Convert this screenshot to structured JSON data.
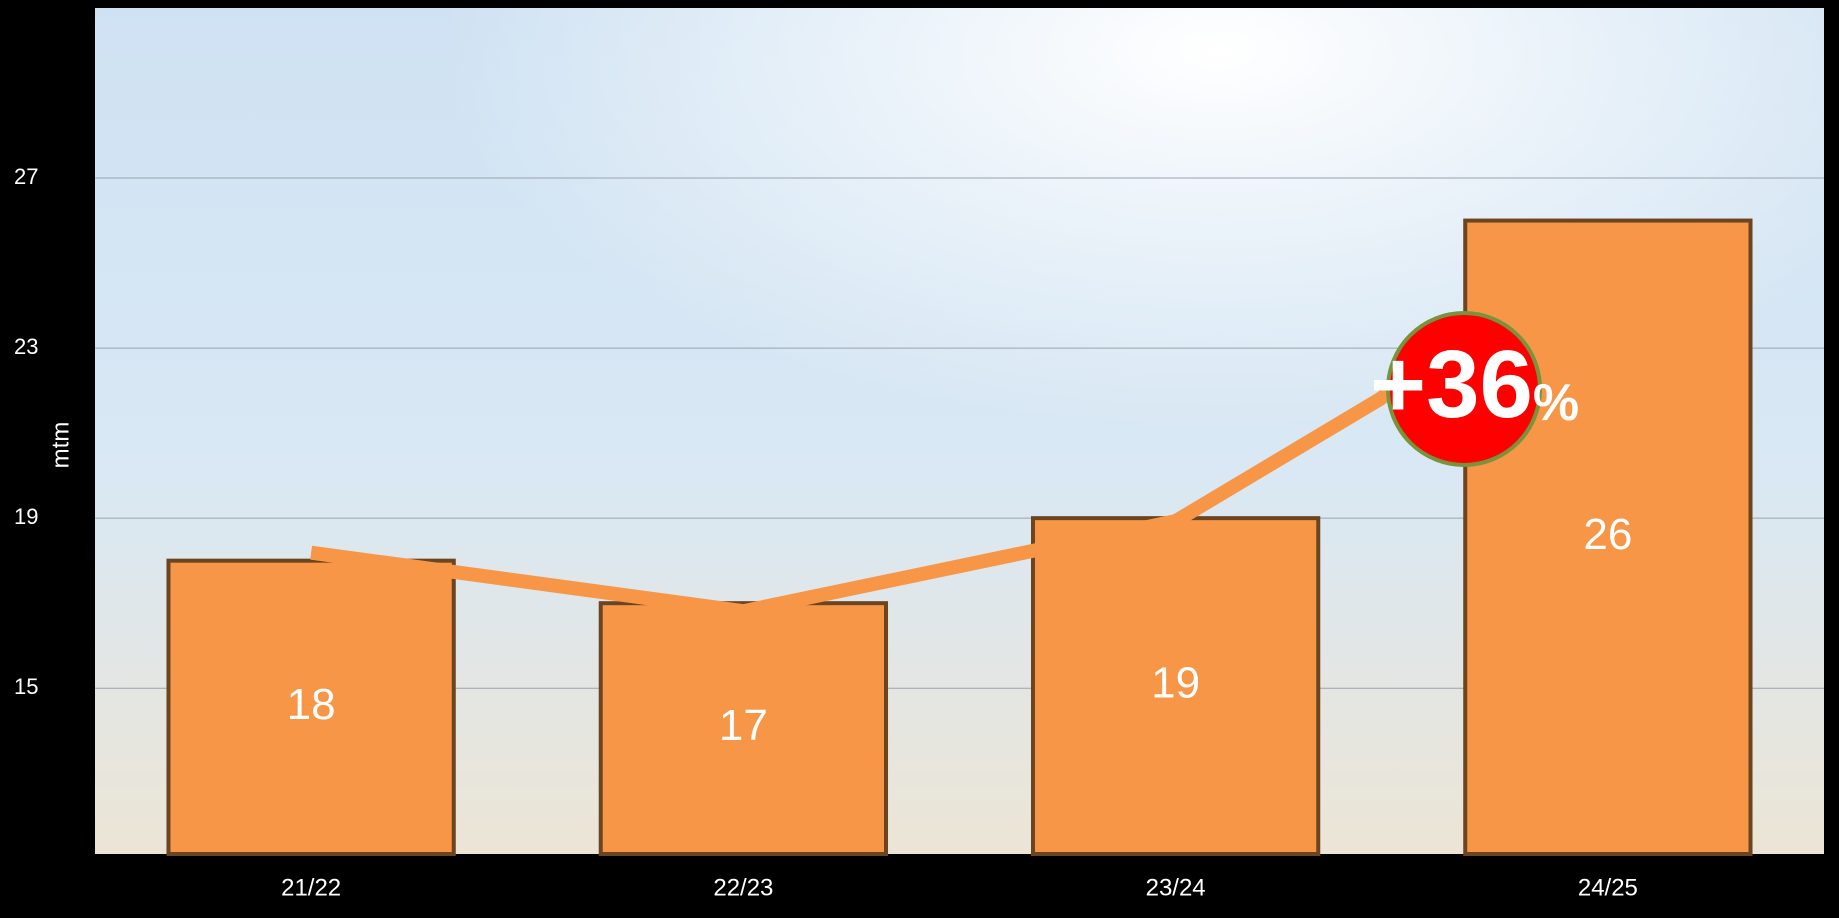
{
  "chart_data": {
    "type": "bar",
    "y_label": "mtm",
    "categories": [
      "21/22",
      "22/23",
      "23/24",
      "24/25"
    ],
    "values": [
      18,
      17,
      19,
      26
    ],
    "color": "#f79646",
    "ylim": [
      11.1,
      31
    ],
    "yticks": [
      15,
      19,
      23,
      27
    ],
    "grid": true,
    "annotation": "+36",
    "annotation_unit": "%"
  }
}
